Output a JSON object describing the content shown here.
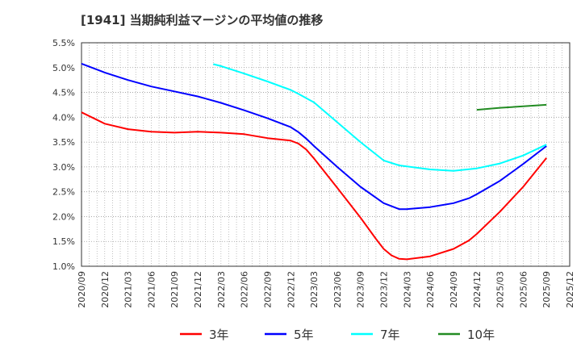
{
  "chart_data": {
    "type": "line",
    "title": "[1941]  当期純利益マージンの平均値の推移",
    "xlabel": "",
    "ylabel": "",
    "ylim": [
      1.0,
      5.5
    ],
    "yticks": [
      "5.5%",
      "5.0%",
      "4.5%",
      "4.0%",
      "3.5%",
      "3.0%",
      "2.5%",
      "2.0%",
      "1.5%",
      "1.0%"
    ],
    "ytick_values": [
      5.5,
      5.0,
      4.5,
      4.0,
      3.5,
      3.0,
      2.5,
      2.0,
      1.5,
      1.0
    ],
    "xticks": [
      "2020/09",
      "2020/12",
      "2021/03",
      "2021/06",
      "2021/09",
      "2021/12",
      "2022/03",
      "2022/06",
      "2022/09",
      "2022/12",
      "2023/03",
      "2023/06",
      "2023/09",
      "2023/12",
      "2024/03",
      "2024/06",
      "2024/09",
      "2024/12",
      "2025/03",
      "2025/06",
      "2025/09",
      "2025/12"
    ],
    "grid": true,
    "legend_position": "bottom",
    "series": [
      {
        "name": "3年",
        "color": "#ff0000",
        "points": [
          [
            "2020/09",
            4.1
          ],
          [
            "2020/12",
            3.87
          ],
          [
            "2021/03",
            3.76
          ],
          [
            "2021/06",
            3.71
          ],
          [
            "2021/09",
            3.69
          ],
          [
            "2021/12",
            3.71
          ],
          [
            "2022/03",
            3.69
          ],
          [
            "2022/06",
            3.66
          ],
          [
            "2022/09",
            3.58
          ],
          [
            "2022/12",
            3.53
          ],
          [
            "2023/01",
            3.47
          ],
          [
            "2023/02",
            3.35
          ],
          [
            "2023/03",
            3.17
          ],
          [
            "2023/06",
            2.58
          ],
          [
            "2023/09",
            1.98
          ],
          [
            "2023/11",
            1.55
          ],
          [
            "2023/12",
            1.35
          ],
          [
            "2024/01",
            1.22
          ],
          [
            "2024/02",
            1.15
          ],
          [
            "2024/03",
            1.14
          ],
          [
            "2024/06",
            1.2
          ],
          [
            "2024/09",
            1.35
          ],
          [
            "2024/11",
            1.52
          ],
          [
            "2024/12",
            1.65
          ],
          [
            "2025/03",
            2.1
          ],
          [
            "2025/06",
            2.6
          ],
          [
            "2025/09",
            3.18
          ]
        ]
      },
      {
        "name": "5年",
        "color": "#0000ff",
        "points": [
          [
            "2020/09",
            5.08
          ],
          [
            "2020/12",
            4.9
          ],
          [
            "2021/03",
            4.75
          ],
          [
            "2021/06",
            4.62
          ],
          [
            "2021/09",
            4.52
          ],
          [
            "2021/12",
            4.42
          ],
          [
            "2022/03",
            4.29
          ],
          [
            "2022/06",
            4.14
          ],
          [
            "2022/09",
            3.98
          ],
          [
            "2022/12",
            3.8
          ],
          [
            "2023/01",
            3.7
          ],
          [
            "2023/02",
            3.57
          ],
          [
            "2023/03",
            3.42
          ],
          [
            "2023/06",
            3.0
          ],
          [
            "2023/09",
            2.6
          ],
          [
            "2023/12",
            2.27
          ],
          [
            "2024/02",
            2.15
          ],
          [
            "2024/03",
            2.15
          ],
          [
            "2024/06",
            2.19
          ],
          [
            "2024/09",
            2.27
          ],
          [
            "2024/11",
            2.37
          ],
          [
            "2024/12",
            2.45
          ],
          [
            "2025/03",
            2.72
          ],
          [
            "2025/06",
            3.06
          ],
          [
            "2025/09",
            3.42
          ]
        ]
      },
      {
        "name": "7年",
        "color": "#00ffff",
        "points": [
          [
            "2022/02",
            5.07
          ],
          [
            "2022/03",
            5.03
          ],
          [
            "2022/06",
            4.88
          ],
          [
            "2022/09",
            4.72
          ],
          [
            "2022/12",
            4.55
          ],
          [
            "2023/01",
            4.47
          ],
          [
            "2023/03",
            4.3
          ],
          [
            "2023/06",
            3.9
          ],
          [
            "2023/09",
            3.5
          ],
          [
            "2023/12",
            3.13
          ],
          [
            "2024/02",
            3.03
          ],
          [
            "2024/03",
            3.01
          ],
          [
            "2024/06",
            2.95
          ],
          [
            "2024/09",
            2.92
          ],
          [
            "2024/12",
            2.97
          ],
          [
            "2025/03",
            3.07
          ],
          [
            "2025/06",
            3.23
          ],
          [
            "2025/09",
            3.45
          ]
        ]
      },
      {
        "name": "10年",
        "color": "#228b22",
        "points": [
          [
            "2024/12",
            4.15
          ],
          [
            "2025/03",
            4.19
          ],
          [
            "2025/06",
            4.22
          ],
          [
            "2025/09",
            4.25
          ]
        ]
      }
    ]
  }
}
